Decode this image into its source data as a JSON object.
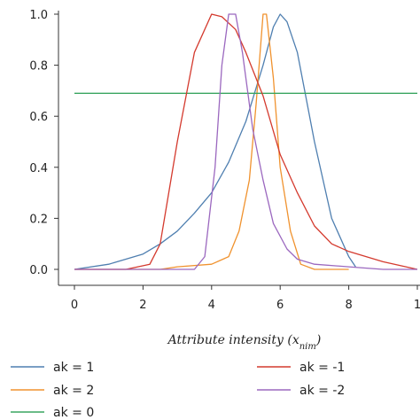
{
  "chart_data": {
    "type": "line",
    "title": "",
    "xlabel": "Attribute intensity (x",
    "xlabel_sub": "nim",
    "xlabel_close": ")",
    "ylabel_fragment": "nim",
    "ylim": [
      0,
      1.0
    ],
    "xlim": [
      0,
      10
    ],
    "x_ticks": [
      "0",
      "2",
      "4",
      "6",
      "8",
      "1"
    ],
    "y_ticks": [
      "0.0",
      "0.2",
      "0.4",
      "0.6",
      "0.8",
      "1.0"
    ],
    "grid": false,
    "legend_position": "bottom",
    "series": [
      {
        "name": "ak = 1",
        "color": "#4f7fb0",
        "x": [
          0,
          1,
          2,
          2.5,
          3,
          3.5,
          4,
          4.5,
          5,
          5.5,
          5.8,
          6,
          6.2,
          6.5,
          7,
          7.5,
          8,
          8.2
        ],
        "y": [
          0.0,
          0.02,
          0.06,
          0.1,
          0.15,
          0.22,
          0.3,
          0.42,
          0.58,
          0.8,
          0.95,
          1.0,
          0.97,
          0.85,
          0.5,
          0.2,
          0.05,
          0.01
        ]
      },
      {
        "name": "ak = 2",
        "color": "#f0922e",
        "x": [
          0,
          2,
          2.5,
          3,
          4,
          4.5,
          4.8,
          5.1,
          5.3,
          5.5,
          5.6,
          5.8,
          6,
          6.3,
          6.6,
          7,
          8
        ],
        "y": [
          0.0,
          0.0,
          0.0,
          0.01,
          0.02,
          0.05,
          0.15,
          0.35,
          0.65,
          1.0,
          1.0,
          0.75,
          0.4,
          0.15,
          0.02,
          0.0,
          0.0
        ]
      },
      {
        "name": "ak = 0",
        "color": "#3aa560",
        "x": [
          0,
          10
        ],
        "y": [
          0.69,
          0.69
        ]
      },
      {
        "name": "ak = -1",
        "color": "#d43a2e",
        "x": [
          0,
          1.5,
          2.2,
          2.5,
          3,
          3.5,
          4,
          4.3,
          4.7,
          5,
          5.5,
          6,
          6.5,
          7,
          7.5,
          8,
          9,
          10
        ],
        "y": [
          0.0,
          0.0,
          0.02,
          0.1,
          0.5,
          0.85,
          1.0,
          0.99,
          0.94,
          0.85,
          0.68,
          0.45,
          0.3,
          0.17,
          0.1,
          0.07,
          0.03,
          0.0
        ]
      },
      {
        "name": "ak = -2",
        "color": "#9b68bf",
        "x": [
          0,
          3,
          3.5,
          3.8,
          4.1,
          4.3,
          4.5,
          4.7,
          4.9,
          5.2,
          5.5,
          5.8,
          6.2,
          6.5,
          7,
          8,
          9,
          10
        ],
        "y": [
          0.0,
          0.0,
          0.0,
          0.05,
          0.4,
          0.8,
          1.0,
          1.0,
          0.85,
          0.55,
          0.35,
          0.18,
          0.08,
          0.04,
          0.02,
          0.01,
          0.0,
          0.0
        ]
      }
    ]
  }
}
